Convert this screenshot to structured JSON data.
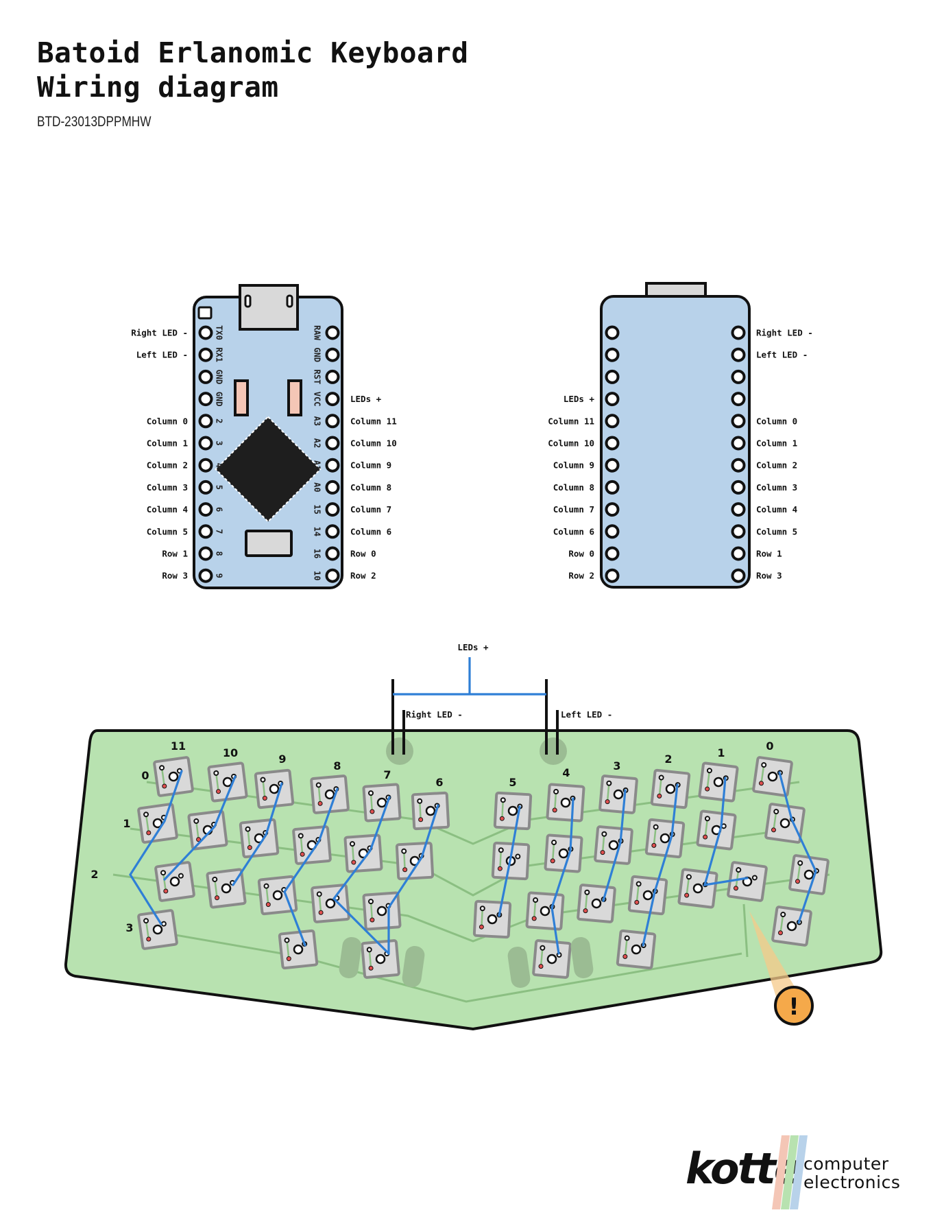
{
  "title": {
    "line1": "Batoid Erlanomic Keyboard",
    "line2": "Wiring diagram"
  },
  "doc_id": "BTD-23013DPPMHW",
  "controller_front": {
    "left_pins": [
      {
        "pin": "TX0",
        "label": "Right LED -"
      },
      {
        "pin": "RX1",
        "label": "Left LED -"
      },
      {
        "pin": "GND",
        "label": ""
      },
      {
        "pin": "GND",
        "label": ""
      },
      {
        "pin": "2",
        "label": "Column 0"
      },
      {
        "pin": "3",
        "label": "Column 1"
      },
      {
        "pin": "4",
        "label": "Column 2"
      },
      {
        "pin": "5",
        "label": "Column 3"
      },
      {
        "pin": "6",
        "label": "Column 4"
      },
      {
        "pin": "7",
        "label": "Column 5"
      },
      {
        "pin": "8",
        "label": "Row 1"
      },
      {
        "pin": "9",
        "label": "Row 3"
      }
    ],
    "right_pins": [
      {
        "pin": "RAW",
        "label": ""
      },
      {
        "pin": "GND",
        "label": ""
      },
      {
        "pin": "RST",
        "label": ""
      },
      {
        "pin": "VCC",
        "label": "LEDs +"
      },
      {
        "pin": "A3",
        "label": "Column 11"
      },
      {
        "pin": "A2",
        "label": "Column 10"
      },
      {
        "pin": "A1",
        "label": "Column 9"
      },
      {
        "pin": "A0",
        "label": "Column 8"
      },
      {
        "pin": "15",
        "label": "Column 7"
      },
      {
        "pin": "14",
        "label": "Column 6"
      },
      {
        "pin": "16",
        "label": "Row 0"
      },
      {
        "pin": "10",
        "label": "Row 2"
      }
    ]
  },
  "controller_back": {
    "left_labels": [
      "",
      "",
      "",
      "LEDs +",
      "Column 11",
      "Column 10",
      "Column 9",
      "Column 8",
      "Column 7",
      "Column 6",
      "Row 0",
      "Row 2"
    ],
    "right_labels": [
      "Right LED -",
      "Left LED -",
      "",
      "",
      "Column 0",
      "Column 1",
      "Column 2",
      "Column 3",
      "Column 4",
      "Column 5",
      "Row 1",
      "Row 3"
    ]
  },
  "board": {
    "leds_plus_label": "LEDs +",
    "right_led_label": "Right LED -",
    "left_led_label": "Left LED -",
    "column_labels_left": [
      "11",
      "10",
      "9",
      "8",
      "7",
      "6"
    ],
    "column_labels_right": [
      "5",
      "4",
      "3",
      "2",
      "1",
      "0"
    ],
    "row_labels": [
      "0",
      "1",
      "2",
      "3"
    ],
    "warning_icon": "exclamation-warning-icon"
  },
  "colors": {
    "controller_fill": "#b8d2ea",
    "board_fill": "#b8e2b0",
    "trace": "#8bbf82",
    "wire": "#2f7fd6",
    "key_fill": "#d9d9d9",
    "key_border": "#8a8a8a",
    "warning": "#f5a94a"
  },
  "logo": {
    "word": "kotte",
    "line1": "computer",
    "line2": "electronics"
  }
}
